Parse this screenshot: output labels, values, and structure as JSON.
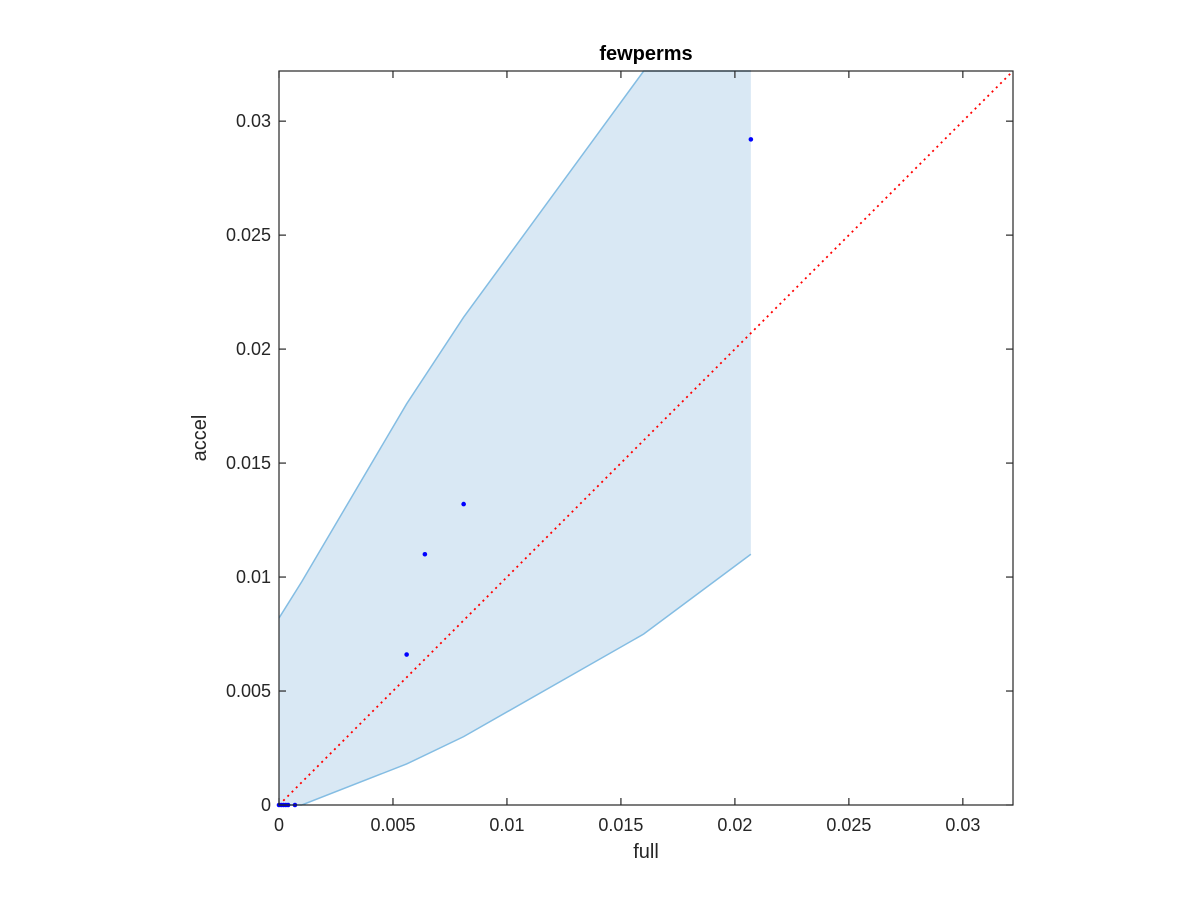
{
  "chart_data": {
    "type": "scatter",
    "title": "fewperms",
    "xlabel": "full",
    "ylabel": "accel",
    "xlim": [
      0,
      0.0322
    ],
    "ylim": [
      0,
      0.0322
    ],
    "xticks": [
      0,
      0.005,
      0.01,
      0.015,
      0.02,
      0.025,
      0.03
    ],
    "yticks": [
      0,
      0.005,
      0.01,
      0.015,
      0.02,
      0.025,
      0.03
    ],
    "xtick_labels": [
      "0",
      "0.005",
      "0.01",
      "0.015",
      "0.02",
      "0.025",
      "0.03"
    ],
    "ytick_labels": [
      "0",
      "0.005",
      "0.01",
      "0.015",
      "0.02",
      "0.025",
      "0.03"
    ],
    "grid": false,
    "colors": {
      "points": "#0000ff",
      "band_fill": "#d9e8f4",
      "band_edge": "#84bde3",
      "reference_line": "#ff0000",
      "axes": "#262626"
    },
    "series": [
      {
        "kind": "points",
        "x": [
          0,
          0.0001,
          0.0002,
          0.0003,
          0.0004,
          0.0007,
          0.0056,
          0.0064,
          0.0081,
          0.0207
        ],
        "y": [
          0,
          0,
          0,
          0,
          0,
          0,
          0.0066,
          0.011,
          0.0132,
          0.0292
        ]
      },
      {
        "kind": "band",
        "x": [
          0,
          0.001,
          0.0056,
          0.0081,
          0.016,
          0.0207
        ],
        "upper": [
          0.0082,
          0.0098,
          0.0176,
          0.0214,
          0.0322,
          0.0322
        ],
        "lower": [
          0,
          0,
          0.0018,
          0.003,
          0.0075,
          0.011
        ]
      },
      {
        "kind": "reference_line",
        "style": "dotted",
        "x": [
          0,
          0.0322
        ],
        "y": [
          0,
          0.0322
        ]
      }
    ]
  }
}
